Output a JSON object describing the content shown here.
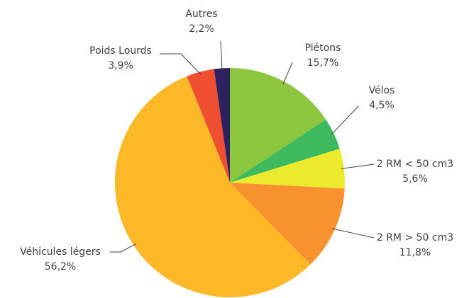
{
  "chart_data": {
    "type": "pie",
    "categories": [
      "Piétons",
      "Vélos",
      "2 RM < 50 cm3",
      "2 RM > 50 cm3",
      "Véhicules légers",
      "Poids Lourds",
      "Autres"
    ],
    "values": [
      15.7,
      4.5,
      5.6,
      11.8,
      56.2,
      3.9,
      2.2
    ],
    "value_labels": [
      "15,7%",
      "4,5%",
      "5,6%",
      "11,8%",
      "56,2%",
      "3,9%",
      "2,2%"
    ],
    "colors": [
      "#8dc63f",
      "#3dba5e",
      "#ecea2c",
      "#f7922f",
      "#fdb827",
      "#f04e30",
      "#2e2160"
    ]
  }
}
